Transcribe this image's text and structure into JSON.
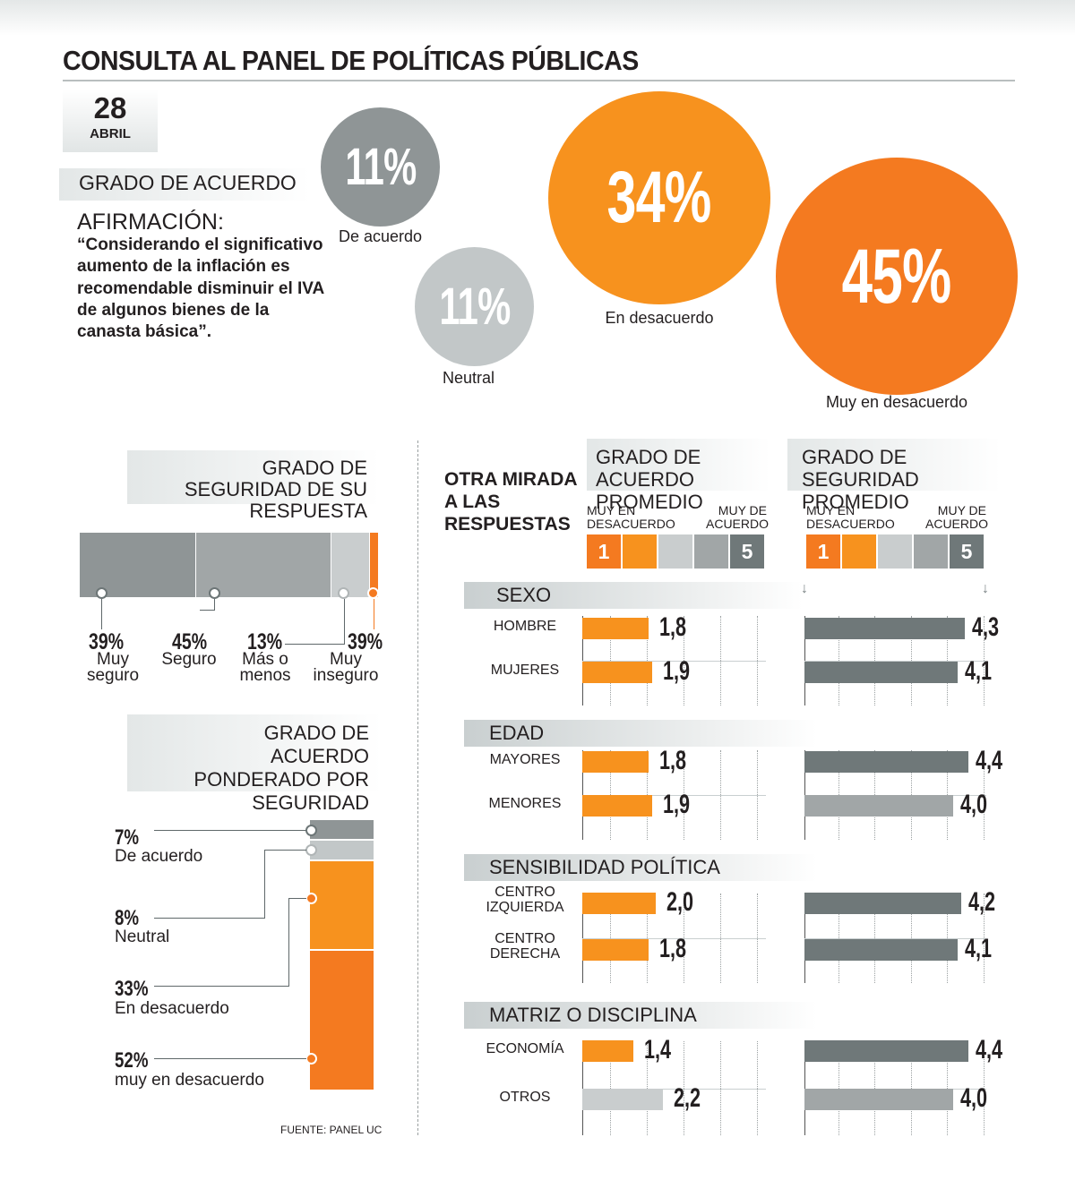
{
  "title": "CONSULTA AL PANEL DE POLÍTICAS PÚBLICAS",
  "date": {
    "day": "28",
    "month": "ABRIL"
  },
  "section_grado": "GRADO DE ACUERDO",
  "afirmacion_label": "AFIRMACIÓN:",
  "afirmacion_text": "“Considerando el significativo aumento de la inflación es recomendable disminuir el IVA de algunos bienes de la canasta básica”.",
  "colors": {
    "dark_gray": "#8f9596",
    "light_gray": "#c2c7c8",
    "orange": "#f7921e",
    "dark_orange": "#f47a20",
    "bar_gray": "#6f7879"
  },
  "chart_data": [
    {
      "type": "bubble",
      "title": "GRADO DE ACUERDO",
      "categories": [
        "De acuerdo",
        "Neutral",
        "En desacuerdo",
        "Muy en desacuerdo"
      ],
      "values": [
        11,
        11,
        34,
        45
      ],
      "labels": [
        "11%",
        "11%",
        "34%",
        "45%"
      ]
    },
    {
      "type": "stacked-bar",
      "title": "GRADO DE SEGURIDAD DE SU RESPUESTA",
      "categories": [
        "Muy seguro",
        "Seguro",
        "Más o menos",
        "Muy inseguro"
      ],
      "values": [
        39,
        45,
        13,
        39
      ],
      "labels": [
        "39%",
        "45%",
        "13%",
        "39%"
      ]
    },
    {
      "type": "stacked-bar",
      "title": "GRADO DE ACUERDO PONDERADO POR SEGURIDAD",
      "categories": [
        "De acuerdo",
        "Neutral",
        "En desacuerdo",
        "muy en desacuerdo"
      ],
      "values": [
        7,
        8,
        33,
        52
      ],
      "labels": [
        "7%",
        "8%",
        "33%",
        "52%"
      ]
    },
    {
      "type": "bar",
      "title": "GRADO DE ACUERDO PROMEDIO",
      "scale": {
        "min_label": "MUY EN DESACUERDO",
        "max_label": "MUY DE ACUERDO",
        "min": "1",
        "max": "5"
      },
      "groups": [
        {
          "name": "SEXO",
          "rows": [
            {
              "label": "HOMBRE",
              "value": 1.8,
              "text": "1,8"
            },
            {
              "label": "MUJERES",
              "value": 1.9,
              "text": "1,9"
            }
          ]
        },
        {
          "name": "EDAD",
          "rows": [
            {
              "label": "MAYORES",
              "value": 1.8,
              "text": "1,8"
            },
            {
              "label": "MENORES",
              "value": 1.9,
              "text": "1,9"
            }
          ]
        },
        {
          "name": "SENSIBILIDAD POLÍTICA",
          "rows": [
            {
              "label": "CENTRO IZQUIERDA",
              "value": 2.0,
              "text": "2,0"
            },
            {
              "label": "CENTRO DERECHA",
              "value": 1.8,
              "text": "1,8"
            }
          ]
        },
        {
          "name": "MATRIZ O DISCIPLINA",
          "rows": [
            {
              "label": "ECONOMÍA",
              "value": 1.4,
              "text": "1,4"
            },
            {
              "label": "OTROS",
              "value": 2.2,
              "text": "2,2"
            }
          ]
        }
      ]
    },
    {
      "type": "bar",
      "title": "GRADO DE SEGURIDAD PROMEDIO",
      "scale": {
        "min_label": "MUY EN DESACUERDO",
        "max_label": "MUY DE ACUERDO",
        "min": "1",
        "max": "5"
      },
      "groups": [
        {
          "name": "SEXO",
          "rows": [
            {
              "label": "HOMBRE",
              "value": 4.3,
              "text": "4,3"
            },
            {
              "label": "MUJERES",
              "value": 4.1,
              "text": "4,1"
            }
          ]
        },
        {
          "name": "EDAD",
          "rows": [
            {
              "label": "MAYORES",
              "value": 4.4,
              "text": "4,4"
            },
            {
              "label": "MENORES",
              "value": 4.0,
              "text": "4,0"
            }
          ]
        },
        {
          "name": "SENSIBILIDAD POLÍTICA",
          "rows": [
            {
              "label": "CENTRO IZQUIERDA",
              "value": 4.2,
              "text": "4,2"
            },
            {
              "label": "CENTRO DERECHA",
              "value": 4.1,
              "text": "4,1"
            }
          ]
        },
        {
          "name": "MATRIZ O DISCIPLINA",
          "rows": [
            {
              "label": "ECONOMÍA",
              "value": 4.4,
              "text": "4,4"
            },
            {
              "label": "OTROS",
              "value": 4.0,
              "text": "4,0"
            }
          ]
        }
      ]
    }
  ],
  "otra_mirada": "OTRA MIRADA A LAS RESPUESTAS",
  "source": "FUENTE: PANEL UC"
}
